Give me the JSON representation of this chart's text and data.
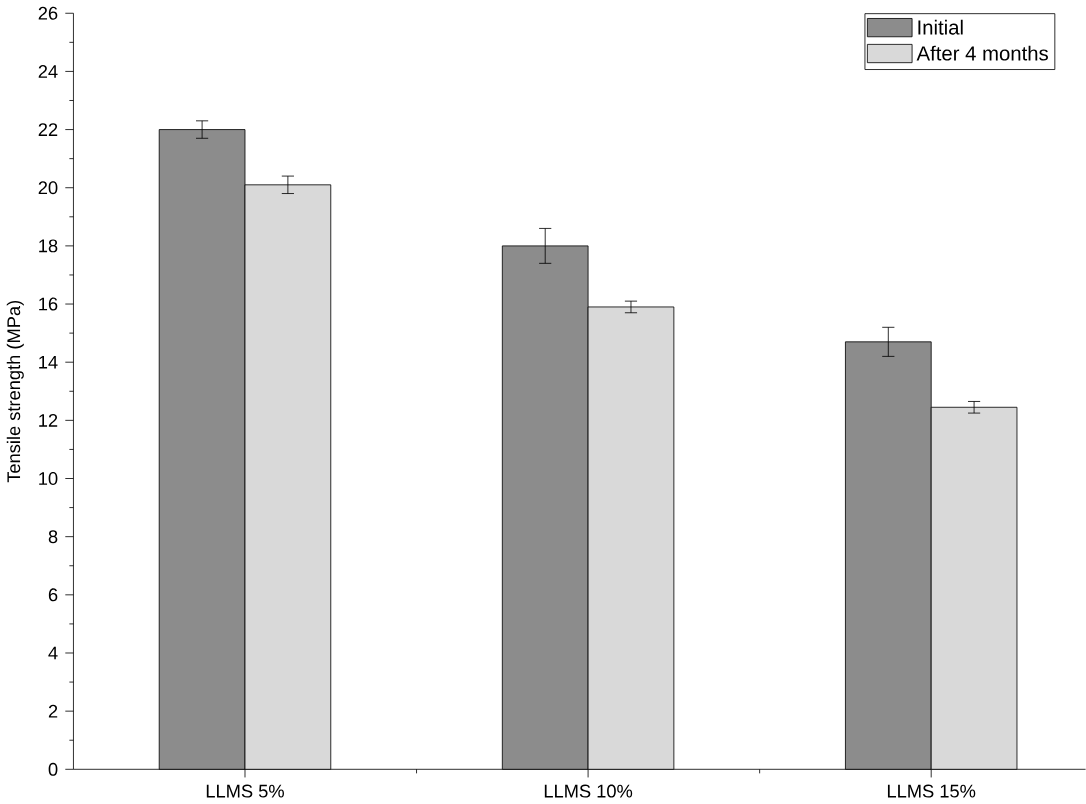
{
  "chart_data": {
    "type": "bar",
    "ylabel": "Tensile strength (MPa)",
    "categories": [
      "LLMS 5%",
      "LLMS 10%",
      "LLMS 15%"
    ],
    "series": [
      {
        "name": "Initial",
        "color": "#8c8c8c",
        "values": [
          22.0,
          18.0,
          14.7
        ],
        "errors": [
          0.3,
          0.6,
          0.5
        ]
      },
      {
        "name": "After 4 months",
        "color": "#d9d9d9",
        "values": [
          20.1,
          15.9,
          12.45
        ],
        "errors": [
          0.3,
          0.2,
          0.2
        ]
      }
    ],
    "ylim": [
      0,
      26
    ],
    "yticks": [
      0,
      2,
      4,
      6,
      8,
      10,
      12,
      14,
      16,
      18,
      20,
      22,
      24,
      26
    ],
    "grid": false,
    "legend": "top right"
  }
}
